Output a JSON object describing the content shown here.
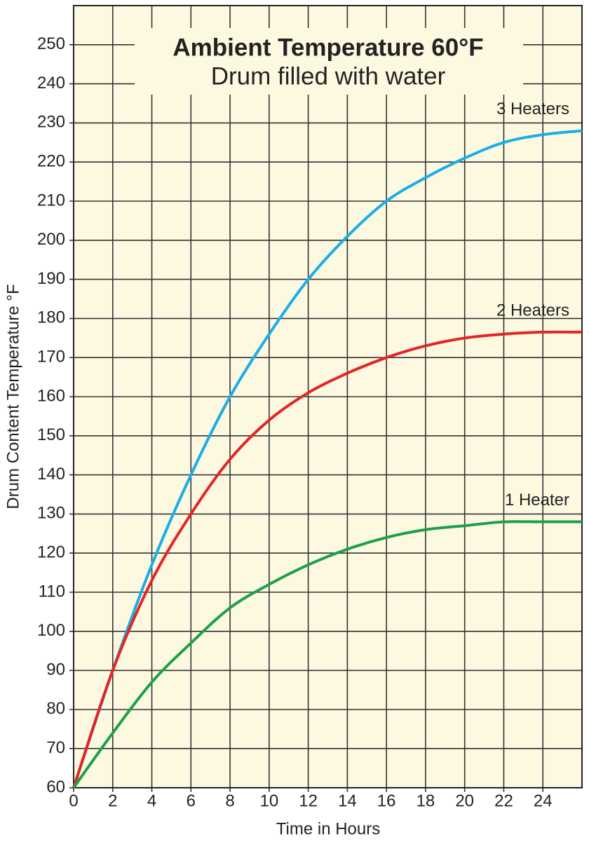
{
  "chart_data": {
    "type": "line",
    "title": "Ambient Temperature 60°F",
    "subtitle": "Drum filled with water",
    "x_label": "Time in Hours",
    "y_label": "Drum Content Temperature °F",
    "x": [
      0,
      2,
      4,
      6,
      8,
      10,
      12,
      14,
      16,
      18,
      20,
      22,
      24,
      26
    ],
    "series": [
      {
        "name": "3 Heaters",
        "color": "#1aaee8",
        "values": [
          60,
          90,
          117,
          140,
          160,
          176,
          190,
          201,
          210,
          216,
          221,
          225,
          227,
          228
        ]
      },
      {
        "name": "2 Heaters",
        "color": "#e32526",
        "values": [
          60,
          90,
          113,
          130,
          144,
          154,
          161,
          166,
          170,
          173,
          175,
          176,
          176.5,
          176.5
        ]
      },
      {
        "name": "1 Heater",
        "color": "#1ca04a",
        "values": [
          60,
          74,
          87,
          97,
          106,
          112,
          117,
          121,
          124,
          126,
          127,
          128,
          128,
          128
        ]
      }
    ],
    "xlim": [
      0,
      26
    ],
    "xticks": [
      0,
      2,
      4,
      6,
      8,
      10,
      12,
      14,
      16,
      18,
      20,
      22,
      24
    ],
    "ylim": [
      60,
      260
    ],
    "yticks": [
      60,
      70,
      80,
      90,
      100,
      110,
      120,
      130,
      140,
      150,
      160,
      170,
      180,
      190,
      200,
      210,
      220,
      230,
      240,
      250
    ],
    "grid": true,
    "background": "#fdf9e1"
  }
}
